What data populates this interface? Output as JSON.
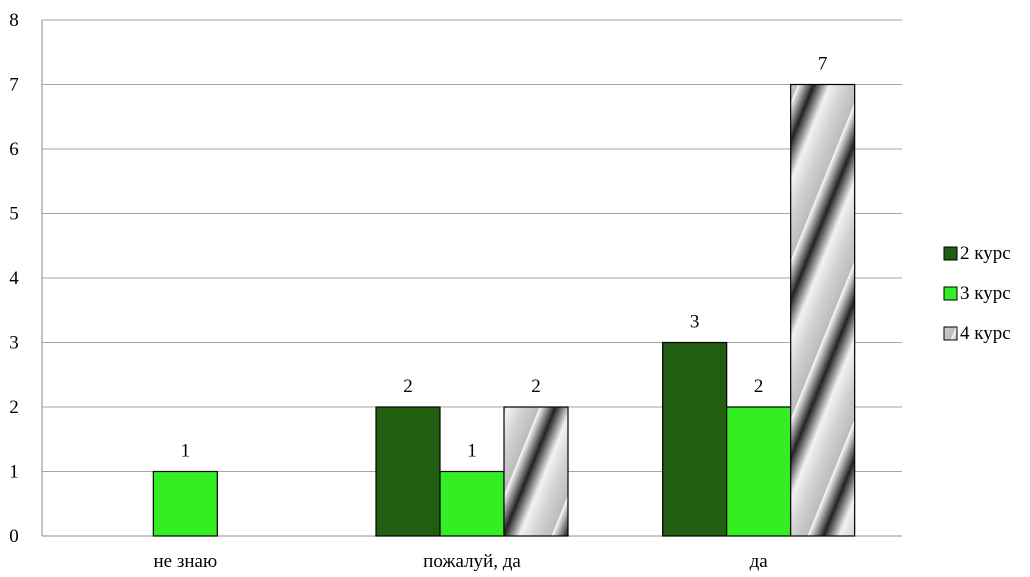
{
  "chart_data": {
    "type": "bar",
    "categories": [
      "не знаю",
      "пожалуй, да",
      "да"
    ],
    "series": [
      {
        "name": "2 курс",
        "values": [
          null,
          2,
          3
        ],
        "color": "#215e10",
        "pattern": "solid"
      },
      {
        "name": "3 курс",
        "values": [
          1,
          1,
          2
        ],
        "color": "#33ee22",
        "pattern": "solid"
      },
      {
        "name": "4 курс",
        "values": [
          null,
          2,
          7
        ],
        "color": "#c8c8c8",
        "pattern": "diagonal-gradient-stripes"
      }
    ],
    "y_ticks": [
      "0",
      "1",
      "2",
      "3",
      "4",
      "5",
      "6",
      "7",
      "8"
    ],
    "ylim": [
      0,
      8
    ],
    "grid": true,
    "legend_position": "right",
    "title": "",
    "xlabel": "",
    "ylabel": ""
  }
}
